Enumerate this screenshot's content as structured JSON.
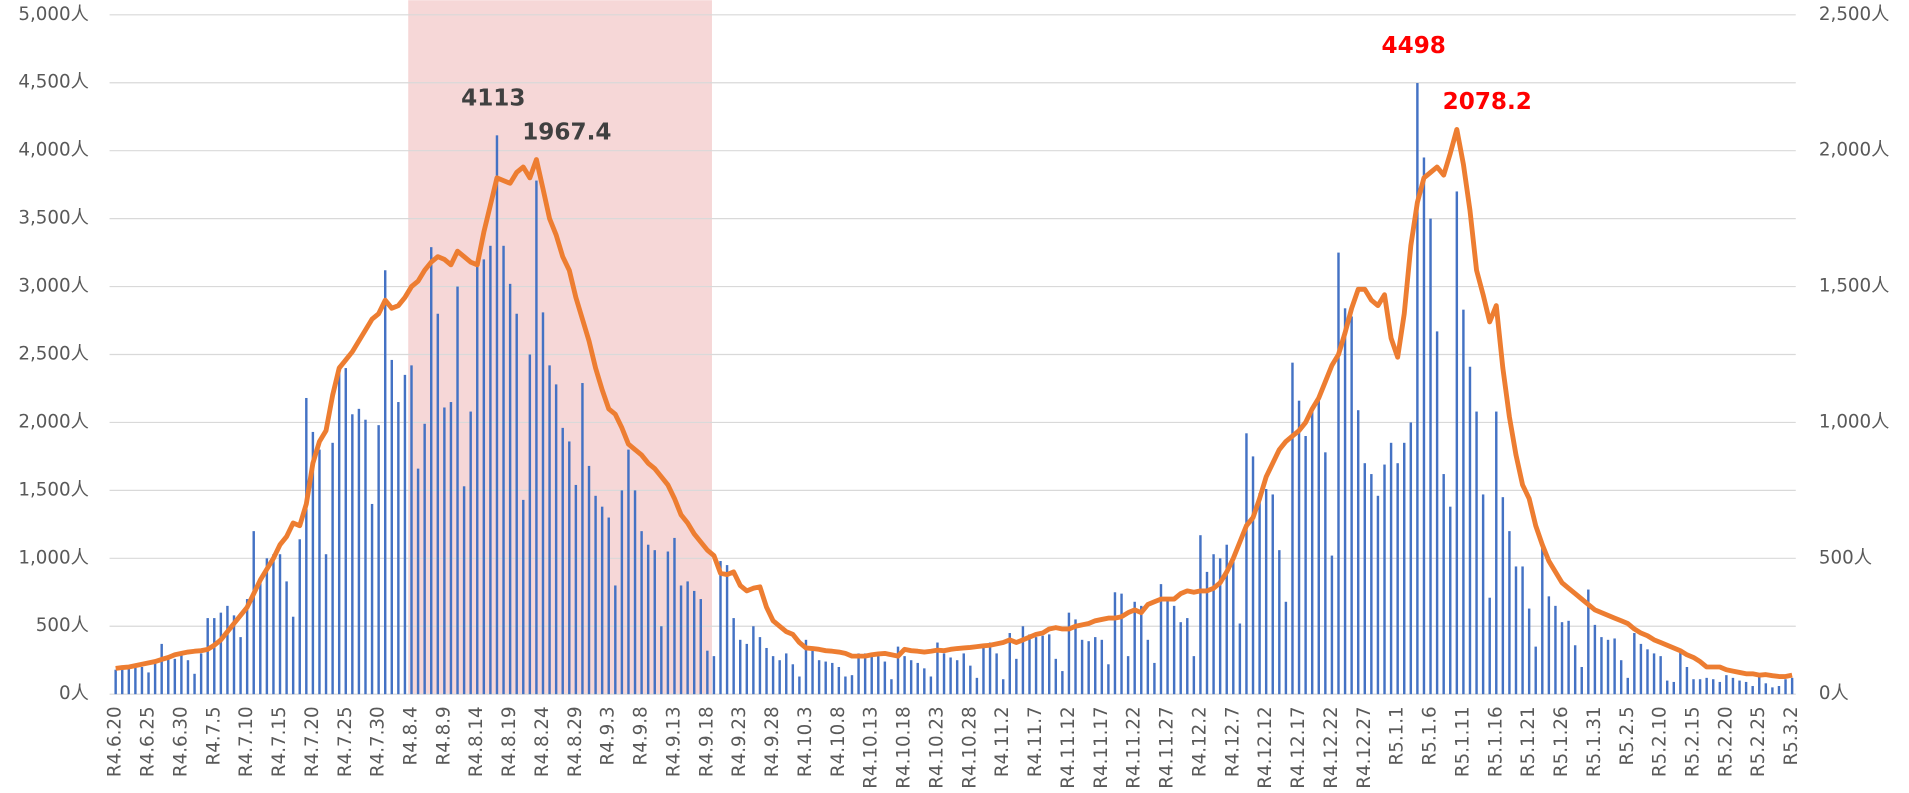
{
  "chart_data": {
    "type": "bar_line",
    "categories": [
      "R4.6.20",
      null,
      null,
      null,
      null,
      "R4.6.25",
      null,
      null,
      null,
      null,
      "R4.6.30",
      null,
      null,
      null,
      null,
      "R4.7.5",
      null,
      null,
      null,
      null,
      "R4.7.10",
      null,
      null,
      null,
      null,
      "R4.7.15",
      null,
      null,
      null,
      null,
      "R4.7.20",
      null,
      null,
      null,
      null,
      "R4.7.25",
      null,
      null,
      null,
      null,
      "R4.7.30",
      null,
      null,
      null,
      null,
      "R4.8.4",
      null,
      null,
      null,
      null,
      "R4.8.9",
      null,
      null,
      null,
      null,
      "R4.8.14",
      null,
      null,
      null,
      null,
      "R4.8.19",
      null,
      null,
      null,
      null,
      "R4.8.24",
      null,
      null,
      null,
      null,
      "R4.8.29",
      null,
      null,
      null,
      null,
      "R4.9.3",
      null,
      null,
      null,
      null,
      "R4.9.8",
      null,
      null,
      null,
      null,
      "R4.9.13",
      null,
      null,
      null,
      null,
      "R4.9.18",
      null,
      null,
      null,
      null,
      "R4.9.23",
      null,
      null,
      null,
      null,
      "R4.9.28",
      null,
      null,
      null,
      null,
      "R4.10.3",
      null,
      null,
      null,
      null,
      "R4.10.8",
      null,
      null,
      null,
      null,
      "R4.10.13",
      null,
      null,
      null,
      null,
      "R4.10.18",
      null,
      null,
      null,
      null,
      "R4.10.23",
      null,
      null,
      null,
      null,
      "R4.10.28",
      null,
      null,
      null,
      null,
      "R4.11.2",
      null,
      null,
      null,
      null,
      "R4.11.7",
      null,
      null,
      null,
      null,
      "R4.11.12",
      null,
      null,
      null,
      null,
      "R4.11.17",
      null,
      null,
      null,
      null,
      "R4.11.22",
      null,
      null,
      null,
      null,
      "R4.11.27",
      null,
      null,
      null,
      null,
      "R4.12.2",
      null,
      null,
      null,
      null,
      "R4.12.7",
      null,
      null,
      null,
      null,
      "R4.12.12",
      null,
      null,
      null,
      null,
      "R4.12.17",
      null,
      null,
      null,
      null,
      "R4.12.22",
      null,
      null,
      null,
      null,
      "R4.12.27",
      null,
      null,
      null,
      null,
      "R5.1.1",
      null,
      null,
      null,
      null,
      "R5.1.6",
      null,
      null,
      null,
      null,
      "R5.1.11",
      null,
      null,
      null,
      null,
      "R5.1.16",
      null,
      null,
      null,
      null,
      "R5.1.21",
      null,
      null,
      null,
      null,
      "R5.1.26",
      null,
      null,
      null,
      null,
      "R5.1.31",
      null,
      null,
      null,
      null,
      "R5.2.5",
      null,
      null,
      null,
      null,
      "R5.2.10",
      null,
      null,
      null,
      null,
      "R5.2.15",
      null,
      null,
      null,
      null,
      "R5.2.20",
      null,
      null,
      null,
      null,
      "R5.2.25",
      null,
      null,
      null,
      null,
      "R5.3.2"
    ],
    "series": [
      {
        "type": "bar",
        "color": "#4472c4",
        "values": [
          180,
          200,
          190,
          210,
          200,
          160,
          250,
          370,
          280,
          260,
          300,
          250,
          150,
          300,
          560,
          560,
          600,
          650,
          580,
          420,
          700,
          1200,
          850,
          1000,
          1030,
          1030,
          830,
          570,
          1140,
          2180,
          1930,
          1800,
          1030,
          1850,
          2420,
          2400,
          2060,
          2100,
          2020,
          1400,
          1980,
          3120,
          2460,
          2150,
          2350,
          2420,
          1660,
          1990,
          3290,
          2800,
          2110,
          2150,
          3000,
          1530,
          2080,
          3150,
          3200,
          3300,
          4113,
          3300,
          3020,
          2800,
          1430,
          2500,
          3780,
          2810,
          2420,
          2280,
          1960,
          1860,
          1540,
          2290,
          1680,
          1460,
          1380,
          1300,
          800,
          1500,
          1800,
          1500,
          1200,
          1100,
          1060,
          500,
          1050,
          1150,
          800,
          830,
          760,
          700,
          320,
          280,
          980,
          950,
          560,
          400,
          370,
          500,
          420,
          340,
          280,
          250,
          300,
          220,
          130,
          400,
          320,
          250,
          240,
          230,
          200,
          130,
          140,
          300,
          300,
          300,
          280,
          240,
          110,
          350,
          280,
          250,
          230,
          190,
          130,
          380,
          300,
          270,
          250,
          300,
          210,
          120,
          350,
          380,
          300,
          110,
          450,
          260,
          500,
          440,
          420,
          430,
          440,
          260,
          170,
          600,
          550,
          400,
          390,
          420,
          400,
          220,
          750,
          740,
          280,
          680,
          650,
          400,
          230,
          810,
          700,
          650,
          530,
          560,
          280,
          1170,
          900,
          1030,
          1000,
          1100,
          980,
          520,
          1920,
          1750,
          1480,
          1510,
          1470,
          1060,
          680,
          2440,
          2160,
          1900,
          2100,
          2160,
          1780,
          1020,
          3250,
          2840,
          2780,
          2090,
          1700,
          1620,
          1460,
          1690,
          1850,
          1700,
          1850,
          2000,
          4498,
          3950,
          3500,
          2670,
          1620,
          1380,
          3700,
          2830,
          2410,
          2080,
          1470,
          710,
          2080,
          1450,
          1200,
          940,
          940,
          630,
          350,
          1080,
          720,
          650,
          530,
          540,
          360,
          200,
          770,
          510,
          420,
          400,
          410,
          250,
          120,
          450,
          370,
          330,
          300,
          280,
          100,
          90,
          320,
          200,
          110,
          110,
          120,
          110,
          90,
          140,
          120,
          100,
          90,
          60,
          130,
          80,
          50,
          60,
          110,
          120
        ]
      },
      {
        "type": "line",
        "axis": "y2",
        "color": "#ed7d31",
        "values": [
          95,
          98,
          100,
          105,
          110,
          115,
          120,
          128,
          135,
          145,
          150,
          155,
          158,
          160,
          165,
          180,
          200,
          230,
          260,
          290,
          320,
          370,
          420,
          460,
          500,
          550,
          580,
          630,
          620,
          700,
          850,
          930,
          970,
          1100,
          1200,
          1230,
          1260,
          1300,
          1340,
          1380,
          1400,
          1450,
          1420,
          1430,
          1460,
          1500,
          1520,
          1560,
          1590,
          1610,
          1600,
          1580,
          1630,
          1610,
          1590,
          1580,
          1700,
          1800,
          1900,
          1890,
          1880,
          1920,
          1940,
          1900,
          1967.4,
          1860,
          1750,
          1690,
          1610,
          1560,
          1460,
          1380,
          1300,
          1200,
          1120,
          1050,
          1030,
          980,
          920,
          900,
          880,
          850,
          830,
          800,
          770,
          720,
          660,
          630,
          590,
          560,
          530,
          510,
          445,
          440,
          450,
          400,
          380,
          390,
          395,
          320,
          270,
          250,
          230,
          220,
          190,
          170,
          168,
          165,
          160,
          158,
          155,
          150,
          140,
          140,
          140,
          145,
          148,
          150,
          145,
          140,
          165,
          160,
          158,
          155,
          158,
          162,
          160,
          165,
          168,
          170,
          172,
          175,
          178,
          180,
          185,
          190,
          200,
          190,
          200,
          210,
          220,
          225,
          240,
          245,
          240,
          240,
          250,
          255,
          260,
          270,
          275,
          280,
          280,
          285,
          300,
          310,
          300,
          330,
          340,
          350,
          350,
          350,
          370,
          380,
          375,
          380,
          380,
          390,
          410,
          450,
          500,
          560,
          620,
          650,
          720,
          800,
          850,
          900,
          930,
          950,
          970,
          1000,
          1050,
          1090,
          1150,
          1210,
          1250,
          1330,
          1420,
          1490,
          1490,
          1450,
          1430,
          1470,
          1310,
          1240,
          1400,
          1650,
          1810,
          1900,
          1920,
          1940,
          1910,
          1990,
          2078.2,
          1950,
          1780,
          1560,
          1470,
          1370,
          1430,
          1200,
          1020,
          880,
          770,
          720,
          620,
          550,
          490,
          450,
          410,
          390,
          370,
          350,
          330,
          310,
          300,
          290,
          280,
          270,
          260,
          240,
          225,
          215,
          200,
          190,
          180,
          170,
          160,
          145,
          135,
          120,
          100,
          100,
          100,
          90,
          85,
          80,
          75,
          75,
          70,
          72,
          68,
          65,
          65,
          70
        ]
      }
    ],
    "ylim": [
      0,
      5000
    ],
    "yticks": [
      {
        "value": 0,
        "label": "0人"
      },
      {
        "value": 500,
        "label": "500人"
      },
      {
        "value": 1000,
        "label": "1,000人"
      },
      {
        "value": 1500,
        "label": "1,500人"
      },
      {
        "value": 2000,
        "label": "2,000人"
      },
      {
        "value": 2500,
        "label": "2,500人"
      },
      {
        "value": 3000,
        "label": "3,000人"
      },
      {
        "value": 3500,
        "label": "3,500人"
      },
      {
        "value": 4000,
        "label": "4,000人"
      },
      {
        "value": 4500,
        "label": "4,500人"
      },
      {
        "value": 5000,
        "label": "5,000人"
      }
    ],
    "y2lim": [
      0,
      2500
    ],
    "y2ticks": [
      {
        "value": 0,
        "label": "0人"
      },
      {
        "value": 500,
        "label": "500人"
      },
      {
        "value": 1000,
        "label": "1,000人"
      },
      {
        "value": 1500,
        "label": "1,500人"
      },
      {
        "value": 2000,
        "label": "2,000人"
      },
      {
        "value": 2500,
        "label": "2,500人"
      }
    ],
    "grid": true,
    "highlight": {
      "from": "R4.8.4",
      "to": "R4.9.18",
      "color": "#f6d7d7"
    },
    "annotations": [
      {
        "text": "4113",
        "color": "#404040"
      },
      {
        "text": "1967.4",
        "color": "#404040"
      },
      {
        "text": "4498",
        "color": "#ff0000"
      },
      {
        "text": "2078.2",
        "color": "#ff0000"
      }
    ]
  }
}
